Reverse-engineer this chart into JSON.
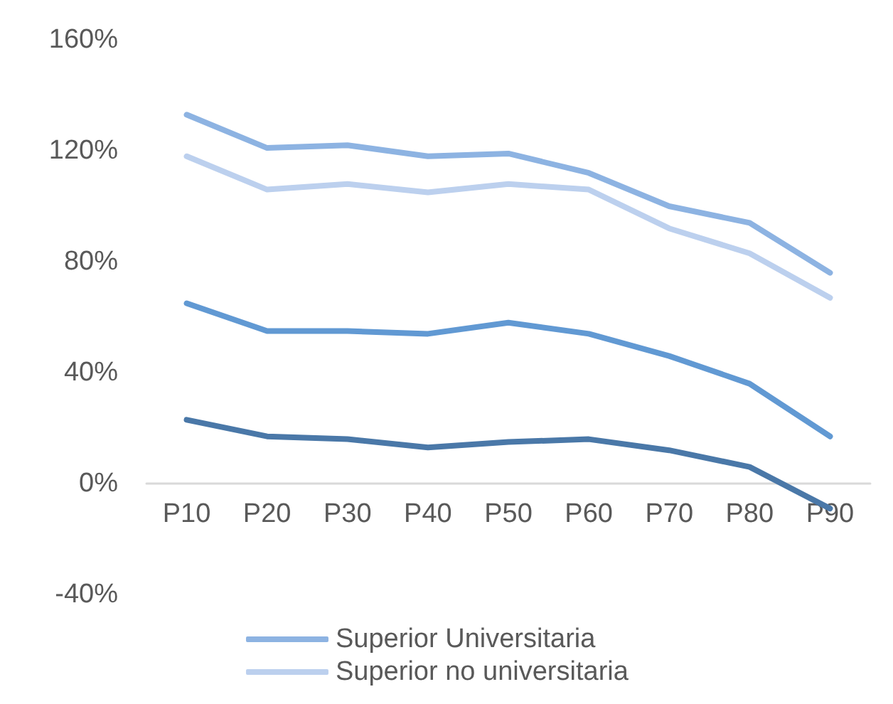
{
  "chart_data": {
    "type": "line",
    "categories": [
      "P10",
      "P20",
      "P30",
      "P40",
      "P50",
      "P60",
      "P70",
      "P80",
      "P90"
    ],
    "series": [
      {
        "name": "Superior Universitaria",
        "color": "#8db3e2",
        "values": [
          133,
          121,
          122,
          118,
          119,
          112,
          100,
          94,
          76
        ]
      },
      {
        "name": "Superior no universitaria",
        "color": "#bcd0ee",
        "values": [
          118,
          106,
          108,
          105,
          108,
          106,
          92,
          83,
          67
        ]
      },
      {
        "color": "#6199d3",
        "values": [
          65,
          55,
          55,
          54,
          58,
          54,
          46,
          36,
          17
        ]
      },
      {
        "color": "#4a78a8",
        "values": [
          23,
          17,
          16,
          13,
          15,
          16,
          12,
          6,
          -9
        ]
      }
    ],
    "ylim": [
      -40,
      160
    ],
    "yticks": [
      {
        "value": -40,
        "label": "-40%"
      },
      {
        "value": 0,
        "label": "0%"
      },
      {
        "value": 40,
        "label": "40%"
      },
      {
        "value": 80,
        "label": "80%"
      },
      {
        "value": 120,
        "label": "120%"
      },
      {
        "value": 160,
        "label": "160%"
      }
    ],
    "grid": false,
    "legend": "bottom",
    "marker": "none",
    "line_style": "solid"
  }
}
